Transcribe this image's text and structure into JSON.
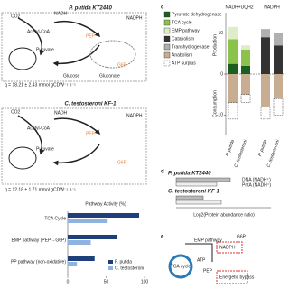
{
  "panel_a": {
    "title": "P. putida KT2440",
    "labels": [
      "Glucose",
      "Gluconate",
      "G6P",
      "PEP",
      "Pyruvate",
      "Acetyl-CoA",
      "NADH",
      "NADPH",
      "CO2"
    ],
    "rate": "q = 18.21 ± 2.43 mmol gCDW⁻¹ h⁻¹"
  },
  "panel_b": {
    "title": "C. testosteroni KF-1",
    "labels": [
      "G6P",
      "PEP",
      "Pyruvate",
      "Acetyl-CoA",
      "NADH",
      "NADPH",
      "CO2"
    ],
    "rate": "q = 12.18 ± 1.71 mmol gCDW⁻¹ h⁻¹"
  },
  "panel_d": {
    "label": "d",
    "rows": [
      "P. putida KT2440",
      "C. testosteroni KF-1"
    ],
    "notes": [
      "DNA (NADH⁺)",
      "PntA (NADH⁺)"
    ],
    "axis": "Log2(Protein abundance ratio)"
  },
  "panel_e": {
    "label": "e",
    "labels": [
      "EMP pathway",
      "TCA cycle",
      "ATP",
      "NADPH",
      "Energetic bypass",
      "G6P",
      "PEP"
    ]
  },
  "chart_data": [
    {
      "type": "hbar",
      "title": "Pathway Activity (%)",
      "categories": [
        "TCA Cycle",
        "EMP pathway (PEP→G6P)",
        "PP pathway (non-oxidative)"
      ],
      "series": [
        {
          "name": "P. putida",
          "color": "#1f3f7a",
          "values": [
            93,
            64,
            35
          ]
        },
        {
          "name": "C. testosteroni",
          "color": "#8fb3e0",
          "values": [
            52,
            30,
            12
          ]
        }
      ],
      "xlim": [
        0,
        100
      ],
      "xticks": [
        0,
        50,
        100
      ]
    },
    {
      "type": "stacked-bar",
      "label": "c",
      "groups": [
        "NADH+UQH2",
        "NADPH"
      ],
      "categories": [
        "P. putida",
        "C. testosteroni",
        "P. putida",
        "C. testosteroni"
      ],
      "ylabels": [
        "Production",
        "Consumption"
      ],
      "series": [
        {
          "name": "Pyruvate dehydrogenase",
          "color": "#1b5e20",
          "values": [
            2.5,
            2,
            0,
            0
          ]
        },
        {
          "name": "TCA cycle",
          "color": "#8bc34a",
          "values": [
            6,
            4,
            0,
            0
          ]
        },
        {
          "name": "EMP pathway",
          "color": "#dcedc8",
          "values": [
            3,
            1,
            0,
            0
          ]
        },
        {
          "name": "Catabolism",
          "color": "#333333",
          "values": [
            0,
            0,
            9,
            7
          ]
        },
        {
          "name": "Transhydrogenase",
          "color": "#b0b0b0",
          "values": [
            0,
            0,
            2,
            3
          ]
        },
        {
          "name": "Anabolism",
          "color": "#c8ad92",
          "values": [
            -7,
            -5,
            -8,
            -6
          ]
        },
        {
          "name": "ATP surplus",
          "color": "none",
          "values": [
            -4,
            -2,
            -3,
            -4
          ]
        }
      ],
      "ylim": [
        -15,
        15
      ],
      "yticks": [
        -10,
        0,
        10
      ]
    }
  ]
}
